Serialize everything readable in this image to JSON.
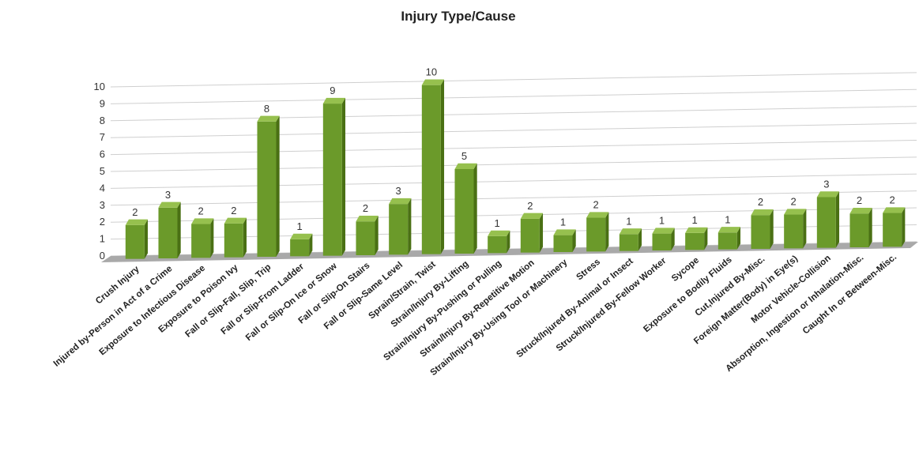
{
  "chart_data": {
    "type": "bar",
    "title": "Injury Type/Cause",
    "xlabel": "",
    "ylabel": "",
    "ylim": [
      0,
      10
    ],
    "yticks": [
      0,
      1,
      2,
      3,
      4,
      5,
      6,
      7,
      8,
      9,
      10
    ],
    "grid": true,
    "legend": "none",
    "categories": [
      "Crush Injury",
      "Injured by-Person in Act of a Crime",
      "Exposure to Infectious Disease",
      "Exposure to Poison Ivy",
      "Fall or Slip-Fall, Slip, Trip",
      "Fall or Slip-From Ladder",
      "Fall or Slip-On Ice or Snow",
      "Fall or Slip-On Stairs",
      "Fall or Slip-Same Level",
      "Sprain/Strain, Twist",
      "Strain/Injury By-Lifting",
      "Strain/Injury By-Pushing or Pulling",
      "Strain/Injury By-Repetitive Motion",
      "Strain/Injury By-Using Tool or Machinery",
      "Stress",
      "Struck/Injured By-Animal or Insect",
      "Struck/Injured By-Fellow Worker",
      "Sycope",
      "Exposure to Bodily Fluids",
      "Cut,Injured By-Misc.",
      "Foreign Matter(Body) in Eye(s)",
      "Motor Vehicle-Collision",
      "Absorption, Ingestion or Inhalation-Misc.",
      "Caught In or Between-Misc."
    ],
    "values": [
      2,
      3,
      2,
      2,
      8,
      1,
      9,
      2,
      3,
      10,
      5,
      1,
      2,
      1,
      2,
      1,
      1,
      1,
      1,
      2,
      2,
      3,
      2,
      2
    ],
    "colors": {
      "bar_front": "#6b9a2a",
      "bar_side": "#4a7014",
      "bar_top": "#96c04e",
      "floor": "#a9a9a9",
      "grid": "#cfcfcf"
    }
  }
}
